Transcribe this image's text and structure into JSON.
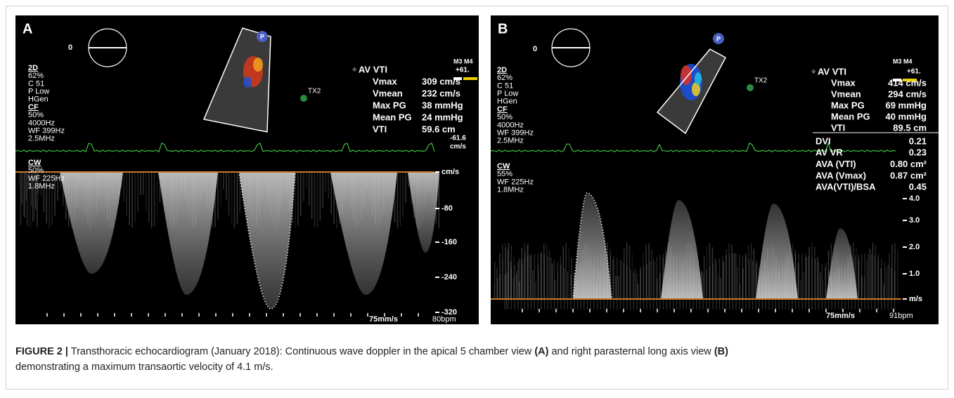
{
  "panels": [
    {
      "label": "A",
      "orientation_marker": "0",
      "probe_icon": "P",
      "transducer": "TX2",
      "settings_upper": [
        "2D",
        "62%",
        "C 51",
        "P Low",
        "HGen",
        "CF",
        "50%",
        "4000Hz",
        "WF 399Hz",
        "2.5MHz"
      ],
      "settings_lower": [
        "CW",
        "50%",
        "WF 225Hz",
        "1.8MHz"
      ],
      "color_scale": {
        "label": "M3 M4",
        "max": "+61.",
        "min": "-61.6",
        "unit": "cm/s"
      },
      "measurements": {
        "title": "AV VTI",
        "rows": [
          {
            "name": "Vmax",
            "value": "309 cm/s"
          },
          {
            "name": "Vmean",
            "value": "232 cm/s"
          },
          {
            "name": "Max PG",
            "value": "38 mmHg"
          },
          {
            "name": "Mean PG",
            "value": "24 mmHg"
          },
          {
            "name": "VTI",
            "value": "59.6 cm"
          }
        ]
      },
      "velocity_scale": [
        "cm/s",
        "-80",
        "-160",
        "-240",
        "-320"
      ],
      "sweep_speed": "75mm/s",
      "heart_rate": "80bpm"
    },
    {
      "label": "B",
      "orientation_marker": "0",
      "probe_icon": "P",
      "transducer": "TX2",
      "settings_upper": [
        "2D",
        "62%",
        "C 51",
        "P Low",
        "HGen",
        "CF",
        "50%",
        "4000Hz",
        "WF 399Hz",
        "2.5MHz"
      ],
      "settings_lower": [
        "CW",
        "55%",
        "WF 225Hz",
        "1.8MHz"
      ],
      "color_scale": {
        "label": "M3 M4",
        "max": "+61."
      },
      "measurements": {
        "title": "AV VTI",
        "rows": [
          {
            "name": "Vmax",
            "value": "414 cm/s"
          },
          {
            "name": "Vmean",
            "value": "294 cm/s"
          },
          {
            "name": "Max PG",
            "value": "69 mmHg"
          },
          {
            "name": "Mean PG",
            "value": "40 mmHg"
          },
          {
            "name": "VTI",
            "value": "89.5 cm"
          }
        ],
        "derived": [
          {
            "name": "DVI",
            "value": "0.21"
          },
          {
            "name": "AV VR",
            "value": "0.23"
          },
          {
            "name": "AVA (VTI)",
            "value": "0.80 cm²"
          },
          {
            "name": "AVA (Vmax)",
            "value": "0.87 cm²"
          },
          {
            "name": "AVA(VTI)/BSA",
            "value": "0.45"
          }
        ]
      },
      "velocity_scale": [
        "4.0",
        "3.0",
        "2.0",
        "1.0",
        "m/s"
      ],
      "sweep_speed": "75mm/s",
      "heart_rate": "91bpm"
    }
  ],
  "caption": {
    "label": "FIGURE 2 |",
    "text_1": "Transthoracic echocardiogram (January 2018): Continuous wave doppler in the apical 5 chamber view",
    "ref_a": "(A)",
    "text_2": "and right parasternal long axis view",
    "ref_b": "(B)",
    "text_3": "demonstrating a maximum transaortic velocity of 4.1 m/s."
  }
}
